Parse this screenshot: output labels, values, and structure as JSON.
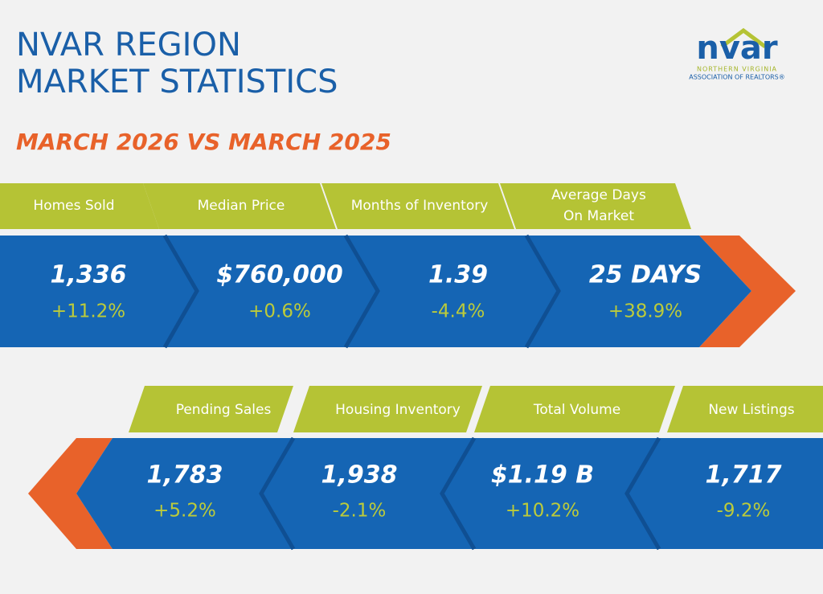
{
  "header": {
    "title": [
      "NVAR REGION",
      "MARKET STATISTICS"
    ],
    "subtitle": "MARCH 2026 VS MARCH 2025"
  },
  "logo": {
    "name": "nvar",
    "tagline": [
      "NORTHERN VIRGINIA",
      "ASSOCIATION OF REALTORS®"
    ]
  },
  "rows": [
    [
      {
        "label": [
          "Homes Sold"
        ],
        "value": "1,336",
        "change": "+11.2%"
      },
      {
        "label": [
          "Median Price"
        ],
        "value": "$760,000",
        "change": "+0.6%"
      },
      {
        "label": [
          "Months of Inventory"
        ],
        "value": "1.39",
        "change": "-4.4%"
      },
      {
        "label": [
          "Average Days",
          "On Market"
        ],
        "value": "25 DAYS",
        "change": "+38.9%"
      }
    ],
    [
      {
        "label": [
          "Pending Sales"
        ],
        "value": "1,783",
        "change": "+5.2%"
      },
      {
        "label": [
          "Housing Inventory"
        ],
        "value": "1,938",
        "change": "-2.1%"
      },
      {
        "label": [
          "Total Volume"
        ],
        "value": "$1.19 B",
        "change": "+10.2%"
      },
      {
        "label": [
          "New Listings"
        ],
        "value": "1,717",
        "change": "-9.2%"
      }
    ]
  ]
}
